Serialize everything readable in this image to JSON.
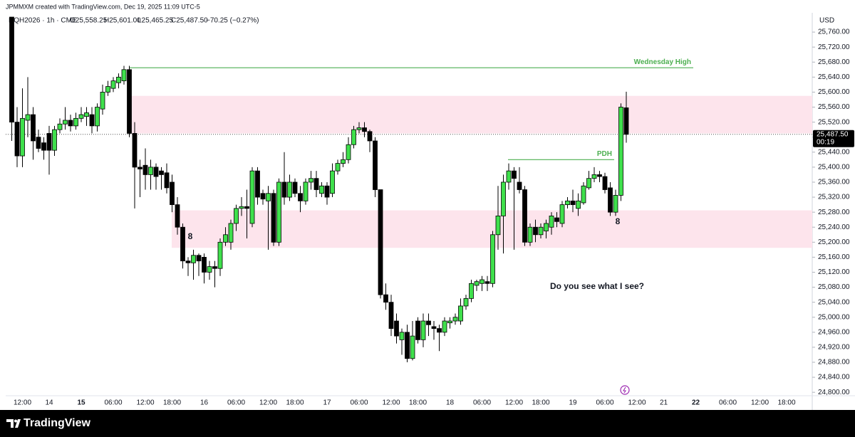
{
  "header": {
    "credit": "JPMMXM created with TradingView.com, Dec 19, 2025 11:09 UTC-5",
    "symbol": "NQH2026 · 1h · CME",
    "ohlc": [
      "O25,558.25",
      "H25,601.00",
      "L25,465.25",
      "C25,487.50"
    ],
    "change": "−70.25 (−0.27%)"
  },
  "footer": {
    "brand": "TradingView"
  },
  "chart_data": {
    "type": "candlestick",
    "currency": "USD",
    "up_color": "#3fe04c",
    "down_color": "#000000",
    "categories": [
      null,
      null,
      "12:00",
      null,
      null,
      null,
      null,
      "14",
      null,
      null,
      null,
      null,
      null,
      "15",
      null,
      null,
      null,
      null,
      null,
      "06:00",
      null,
      null,
      null,
      null,
      null,
      "12:00",
      null,
      null,
      null,
      null,
      "18:00",
      null,
      null,
      null,
      null,
      null,
      "16",
      null,
      null,
      null,
      null,
      null,
      "06:00",
      null,
      null,
      null,
      null,
      null,
      "12:00",
      null,
      null,
      null,
      null,
      "18:00",
      null,
      null,
      null,
      null,
      null,
      "17",
      null,
      null,
      null,
      null,
      null,
      "06:00",
      null,
      null,
      null,
      null,
      null,
      "12:00",
      null,
      null,
      null,
      null,
      "18:00",
      null,
      null,
      null,
      null,
      null,
      "18",
      null,
      null,
      null,
      null,
      null,
      "06:00",
      null,
      null,
      null,
      null,
      null,
      "12:00",
      null,
      null,
      null,
      null,
      "18:00",
      null,
      null,
      null,
      null,
      null,
      "19",
      null,
      null,
      null,
      null,
      null,
      "06:00",
      null,
      null,
      null,
      null,
      null,
      "12:00",
      null,
      null,
      null,
      null,
      "21",
      null,
      null,
      null,
      null,
      null,
      "22",
      null,
      null,
      null,
      null,
      null,
      "06:00",
      null,
      null,
      null,
      null,
      null,
      "12:00",
      null,
      null,
      null,
      null,
      "18:00",
      null,
      null,
      null,
      null
    ],
    "open": [
      25800,
      25520,
      25430,
      25525,
      25540,
      25480,
      25465,
      25490,
      25445,
      25500,
      25515,
      25525,
      25510,
      25530,
      25535,
      25540,
      25510,
      25555,
      25600,
      25610,
      25625,
      25630,
      25660,
      25490,
      25400,
      25405,
      25380,
      25400,
      25390,
      25385,
      25360,
      25300,
      25240,
      25150,
      25145,
      25165,
      25160,
      25120,
      25135,
      25130,
      25200,
      25200,
      25250,
      25290,
      25295,
      25250,
      25390,
      25330,
      25310,
      25330,
      25200,
      25360,
      25320,
      25360,
      25330,
      25310,
      25360,
      25370,
      25330,
      25350,
      25330,
      25390,
      25410,
      25420,
      25460,
      25500,
      25505,
      25495,
      25470,
      25340,
      25060,
      25040,
      24990,
      24940,
      24960,
      24890,
      24990,
      24940,
      24990,
      24975,
      24970,
      24960,
      24985,
      24990,
      24990,
      25030,
      25050,
      25085,
      25090,
      25095,
      25090,
      25220,
      25270,
      25360,
      25390,
      25360,
      25340,
      25200,
      25240,
      25220,
      25230,
      25240,
      25265,
      25250,
      25300,
      25310,
      25290,
      25305,
      25345,
      25370,
      25380,
      25375,
      25345,
      25280,
      25325,
      25558.25,
      null,
      null,
      null,
      null,
      null,
      null,
      null,
      null,
      null,
      null,
      null,
      null,
      null,
      null,
      null,
      null,
      null,
      null,
      null,
      null,
      null,
      null,
      null,
      null,
      null,
      null,
      null,
      null,
      null,
      null,
      null,
      null,
      null,
      null
    ],
    "high": [
      25800,
      25560,
      25610,
      25640,
      25560,
      25500,
      25480,
      25510,
      25510,
      25530,
      25560,
      25540,
      25545,
      25560,
      25560,
      25560,
      25570,
      25620,
      25630,
      25640,
      25650,
      25670,
      25670,
      25520,
      25420,
      25450,
      25420,
      25410,
      25400,
      25410,
      25380,
      25320,
      25250,
      25160,
      25180,
      25170,
      25170,
      25150,
      25150,
      25210,
      25240,
      25260,
      25300,
      25320,
      25340,
      25400,
      25400,
      25340,
      25350,
      25340,
      25370,
      25440,
      25380,
      25370,
      25350,
      25370,
      25390,
      25390,
      25360,
      25360,
      25410,
      25420,
      25440,
      25480,
      25510,
      25520,
      25520,
      25500,
      25480,
      25340,
      25090,
      25060,
      25010,
      24970,
      24980,
      24990,
      25000,
      25010,
      25010,
      24990,
      24980,
      25000,
      25000,
      25010,
      25050,
      25060,
      25100,
      25100,
      25110,
      25110,
      25230,
      25350,
      25380,
      25410,
      25400,
      25400,
      25350,
      25250,
      25260,
      25250,
      25260,
      25280,
      25280,
      25310,
      25320,
      25340,
      25330,
      25360,
      25390,
      25400,
      25390,
      25385,
      25360,
      25340,
      25570,
      25601,
      null,
      null,
      null,
      null,
      null,
      null,
      null,
      null,
      null,
      null,
      null,
      null,
      null,
      null,
      null,
      null,
      null,
      null,
      null,
      null,
      null,
      null,
      null,
      null,
      null,
      null,
      null,
      null,
      null,
      null,
      null,
      null,
      null,
      null
    ],
    "low": [
      25470,
      25400,
      25400,
      25480,
      25420,
      25440,
      25420,
      25380,
      25430,
      25490,
      25500,
      25495,
      25500,
      25520,
      25510,
      25490,
      25495,
      25540,
      25590,
      25600,
      25610,
      25620,
      25480,
      25290,
      25320,
      25340,
      25340,
      25340,
      25340,
      25330,
      25280,
      25220,
      25130,
      25110,
      25100,
      25110,
      25090,
      25100,
      25080,
      25110,
      25190,
      25180,
      25230,
      25270,
      25210,
      25240,
      25300,
      25300,
      25180,
      25190,
      25190,
      25300,
      25310,
      25320,
      25280,
      25300,
      25340,
      25320,
      25320,
      25300,
      25320,
      25380,
      25400,
      25410,
      25450,
      25490,
      25480,
      25440,
      25320,
      25050,
      25020,
      24950,
      24930,
      24900,
      24880,
      24885,
      24930,
      24920,
      24950,
      24940,
      24910,
      24950,
      24970,
      24980,
      24980,
      25020,
      25040,
      25070,
      25070,
      25070,
      25080,
      25180,
      25170,
      25340,
      25180,
      25330,
      25190,
      25190,
      25200,
      25210,
      25210,
      25220,
      25240,
      25240,
      25290,
      25280,
      25270,
      25300,
      25340,
      25360,
      25360,
      25330,
      25270,
      25270,
      25310,
      25465.25,
      null,
      null,
      null,
      null,
      null,
      null,
      null,
      null,
      null,
      null,
      null,
      null,
      null,
      null,
      null,
      null,
      null,
      null,
      null,
      null,
      null,
      null,
      null,
      null,
      null,
      null,
      null,
      null,
      null,
      null,
      null,
      null,
      null,
      null
    ],
    "close": [
      25520,
      25430,
      25530,
      25540,
      25470,
      25450,
      25445,
      25445,
      25500,
      25515,
      25525,
      25510,
      25530,
      25540,
      25545,
      25510,
      25560,
      25600,
      25615,
      25630,
      25640,
      25660,
      25490,
      25400,
      25395,
      25380,
      25400,
      25375,
      25380,
      25345,
      25300,
      25240,
      25150,
      25145,
      25165,
      25150,
      25120,
      25135,
      25130,
      25200,
      25220,
      25250,
      25290,
      25295,
      25290,
      25390,
      25320,
      25315,
      25330,
      25200,
      25360,
      25320,
      25360,
      25330,
      25310,
      25360,
      25370,
      25340,
      25350,
      25320,
      25390,
      25410,
      25420,
      25460,
      25500,
      25505,
      25495,
      25470,
      25340,
      25060,
      25040,
      24970,
      24950,
      24960,
      24890,
      24950,
      24940,
      24990,
      24980,
      24970,
      24960,
      24990,
      24990,
      25000,
      25030,
      25050,
      25090,
      25095,
      25100,
      25090,
      25220,
      25270,
      25360,
      25390,
      25370,
      25340,
      25200,
      25240,
      25220,
      25240,
      25250,
      25270,
      25255,
      25300,
      25310,
      25300,
      25310,
      25350,
      25370,
      25380,
      25375,
      25340,
      25280,
      25325,
      25560,
      25487.5,
      null,
      null,
      null,
      null,
      null,
      null,
      null,
      null,
      null,
      null,
      null,
      null,
      null,
      null,
      null,
      null,
      null,
      null,
      null,
      null,
      null,
      null,
      null,
      null,
      null,
      null,
      null,
      null,
      null,
      null,
      null,
      null,
      null,
      null
    ],
    "ylim": [
      24770,
      25800
    ],
    "yticks": [
      {
        "value": 24800,
        "label": "24,800.00"
      },
      {
        "value": 24840,
        "label": "24,840.00"
      },
      {
        "value": 24880,
        "label": "24,880.00"
      },
      {
        "value": 24920,
        "label": "24,920.00"
      },
      {
        "value": 24960,
        "label": "24,960.00"
      },
      {
        "value": 25000,
        "label": "25,000.00"
      },
      {
        "value": 25040,
        "label": "25,040.00"
      },
      {
        "value": 25080,
        "label": "25,080.00"
      },
      {
        "value": 25120,
        "label": "25,120.00"
      },
      {
        "value": 25160,
        "label": "25,160.00"
      },
      {
        "value": 25200,
        "label": "25,200.00"
      },
      {
        "value": 25240,
        "label": "25,240.00"
      },
      {
        "value": 25280,
        "label": "25,280.00"
      },
      {
        "value": 25320,
        "label": "25,320.00"
      },
      {
        "value": 25360,
        "label": "25,360.00"
      },
      {
        "value": 25400,
        "label": "25,400.00"
      },
      {
        "value": 25440,
        "label": "25,440.00"
      },
      {
        "value": 25480,
        "label": "25,480.00"
      },
      {
        "value": 25520,
        "label": "25,520.00"
      },
      {
        "value": 25560,
        "label": "25,560.00"
      },
      {
        "value": 25600,
        "label": "25,600.00"
      },
      {
        "value": 25640,
        "label": "25,640.00"
      },
      {
        "value": 25680,
        "label": "25,680.00"
      },
      {
        "value": 25720,
        "label": "25,720.00"
      },
      {
        "value": 25760,
        "label": "25,760.00"
      }
    ],
    "last_price": {
      "value": 25487.5,
      "label": "25,487.50"
    },
    "countdown": "00:19",
    "zones": [
      {
        "from": 25490,
        "to": 25590,
        "color": "#fde4ec"
      },
      {
        "from": 25185,
        "to": 25285,
        "color": "#fde4ec"
      }
    ],
    "levels": [
      {
        "text": "Wednesday High",
        "value": 25665,
        "color": "#4caf50"
      },
      {
        "text": "PDH",
        "value": 25420,
        "color": "#4caf50"
      }
    ],
    "notes": [
      {
        "text": "8"
      },
      {
        "text": "8"
      },
      {
        "text": "Do you see what I see?"
      }
    ]
  }
}
